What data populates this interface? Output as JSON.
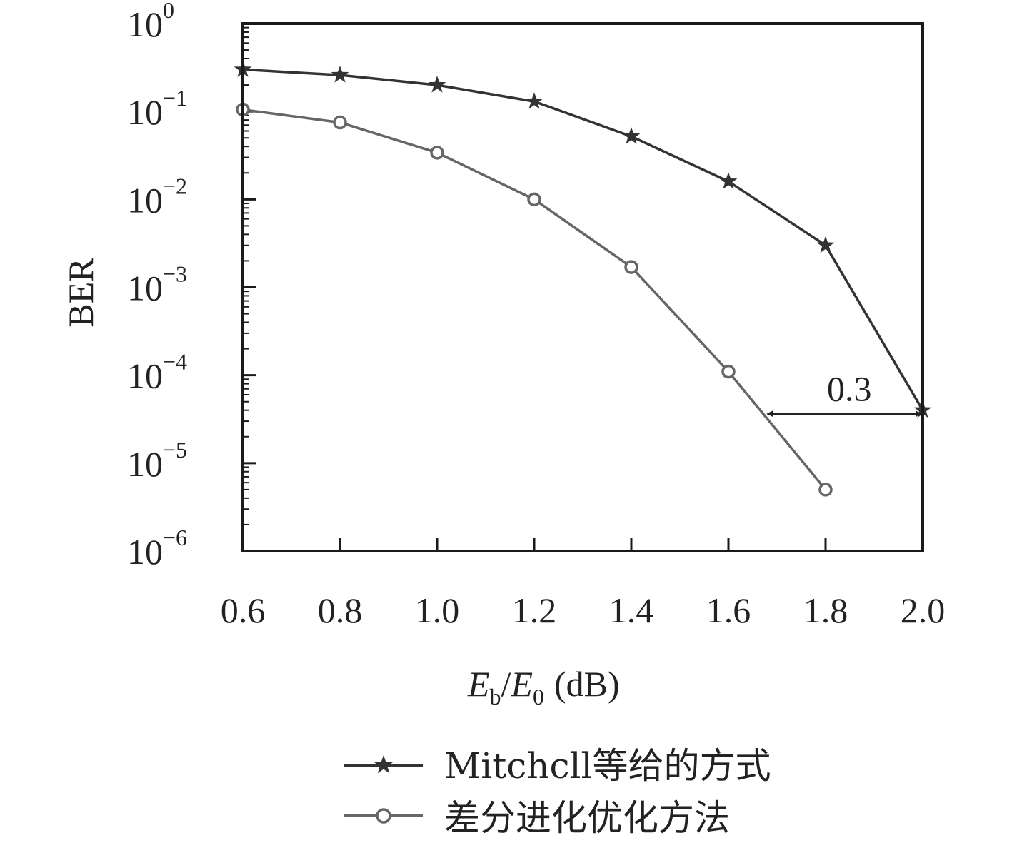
{
  "chart_data": {
    "type": "line",
    "title": "",
    "xlabel": {
      "main": "E",
      "sub1": "b",
      "slash": "/",
      "main2": "E",
      "sub2": "0",
      "unit": "(dB)"
    },
    "ylabel": "BER",
    "x_ticks": [
      "0.6",
      "0.8",
      "1.0",
      "1.2",
      "1.4",
      "1.6",
      "1.8",
      "2.0"
    ],
    "y_ticks": [
      {
        "base": "10",
        "exp": "0",
        "value": 1
      },
      {
        "base": "10",
        "exp": "−1",
        "value": 0.1
      },
      {
        "base": "10",
        "exp": "−2",
        "value": 0.01
      },
      {
        "base": "10",
        "exp": "−3",
        "value": 0.001
      },
      {
        "base": "10",
        "exp": "−4",
        "value": 0.0001
      },
      {
        "base": "10",
        "exp": "−5",
        "value": 1e-05
      },
      {
        "base": "10",
        "exp": "−6",
        "value": 1e-06
      }
    ],
    "xlim": [
      0.6,
      2.0
    ],
    "ylim": [
      1e-06,
      1
    ],
    "y_scale": "log",
    "grid": false,
    "legend_position": "bottom",
    "series": [
      {
        "name": "Mitchcll等给的方式",
        "color": "#333333",
        "marker": "star",
        "x": [
          0.6,
          0.8,
          1.0,
          1.2,
          1.4,
          1.6,
          1.8,
          2.0
        ],
        "y": [
          0.3,
          0.26,
          0.2,
          0.13,
          0.052,
          0.016,
          0.003,
          4e-05
        ]
      },
      {
        "name": "差分进化优化方法",
        "color": "#666666",
        "marker": "circle",
        "x": [
          0.6,
          0.8,
          1.0,
          1.2,
          1.4,
          1.6,
          1.8
        ],
        "y": [
          0.105,
          0.075,
          0.034,
          0.01,
          0.0017,
          0.00011,
          5e-06
        ]
      }
    ],
    "annotation": {
      "text": "0.3",
      "x_from": 1.68,
      "x_to": 2.0,
      "y": 4e-05
    }
  }
}
